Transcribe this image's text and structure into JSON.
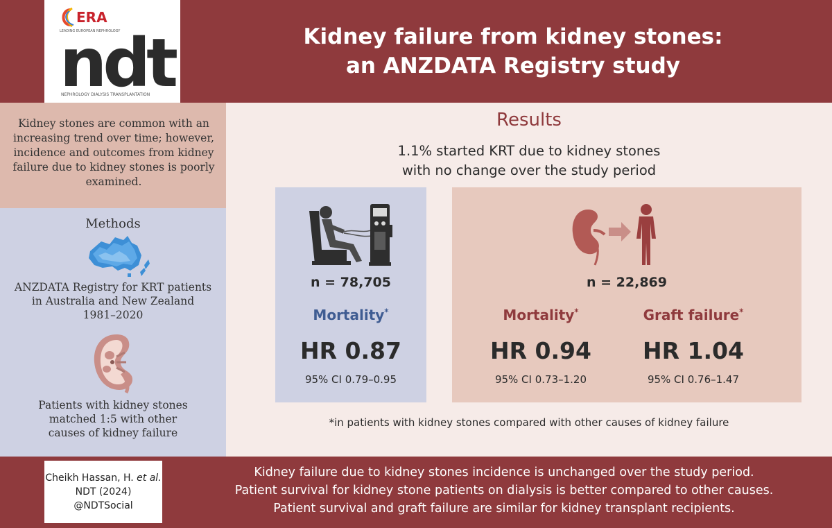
{
  "header": {
    "title_line1": "Kidney failure from kidney stones:",
    "title_line2": "an ANZDATA Registry study",
    "logo": {
      "era_text": "ERA",
      "era_subtext": "LEADING EUROPEAN NEPHROLOGY",
      "ndt_text": "ndt",
      "ndt_subtext": "NEPHROLOGY DIALYSIS TRANSPLANTATION"
    }
  },
  "left": {
    "intro": "Kidney stones are common with an increasing trend over time; however, incidence and outcomes from kidney failure due to kidney stones is poorly examined.",
    "methods_title": "Methods",
    "registry_line1": "ANZDATA Registry for KRT patients",
    "registry_line2": "in Australia and New Zealand",
    "registry_line3": "1981–2020",
    "matched_line1": "Patients with kidney stones",
    "matched_line2": "matched 1:5 with other",
    "matched_line3": "causes of kidney failure"
  },
  "results": {
    "title": "Results",
    "subtitle_line1": "1.1% started KRT due to kidney stones",
    "subtitle_line2": "with no change over the study period",
    "dialysis": {
      "n": "n = 78,705",
      "mortality_label": "Mortality",
      "hr": "HR 0.87",
      "ci": "95% CI 0.79–0.95"
    },
    "transplant": {
      "n": "n = 22,869",
      "mortality_label": "Mortality",
      "mortality_hr": "HR 0.94",
      "mortality_ci": "95% CI 0.73–1.20",
      "graft_label": "Graft failure",
      "graft_hr": "HR 1.04",
      "graft_ci": "95% CI 0.76–1.47"
    },
    "asterisk": "*",
    "footnote": "*in patients with kidney stones compared with other causes of kidney failure"
  },
  "footer": {
    "citation_line1": "Cheikh Hassan, H. ",
    "citation_etal": "et al.",
    "citation_line2": "NDT (2024)",
    "citation_line3": "@NDTSocial",
    "conclusion_line1": "Kidney failure due to kidney stones incidence is unchanged over the study period.",
    "conclusion_line2": "Patient survival for kidney stone patients on dialysis is better compared to other causes.",
    "conclusion_line3": "Patient survival and graft failure are similar for kidney transplant recipients."
  },
  "icons": {
    "dialysis": "dialysis-patient-icon",
    "kidney_transplant": "kidney-to-person-icon",
    "australia_map": "australia-map-icon",
    "kidney_stone": "kidney-stone-icon"
  },
  "colors": {
    "maroon": "#8f3a3d",
    "peach": "#ddb9ad",
    "lavender": "#ced1e3",
    "blush": "#f6ebe8",
    "rose": "#e7c9be",
    "blue_text": "#3f5c92"
  }
}
